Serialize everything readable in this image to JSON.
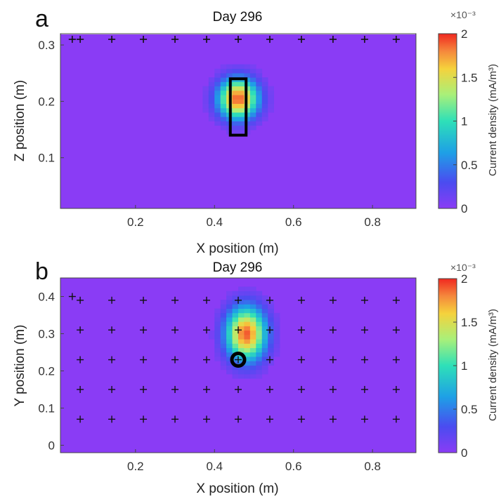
{
  "chart_data": [
    {
      "type": "heatmap",
      "panel_letter": "a",
      "title": "Day 296",
      "xlabel": "X position (m)",
      "ylabel": "Z position (m)",
      "xlim": [
        0.01,
        0.91
      ],
      "ylim": [
        0.01,
        0.32
      ],
      "xticks": [
        0.2,
        0.4,
        0.6,
        0.8
      ],
      "xtick_labels": [
        "0.2",
        "0.4",
        "0.6",
        "0.8"
      ],
      "yticks": [
        0.1,
        0.2,
        0.3
      ],
      "ytick_labels": [
        "0.1",
        "0.2",
        "0.3"
      ],
      "background_value": 0.0,
      "hotspot": {
        "x": 0.46,
        "y": 0.205,
        "peak": 1.9,
        "spread_x": 0.035,
        "spread_y": 0.025
      },
      "rectangle_marker": {
        "x": [
          0.44,
          0.48
        ],
        "y": [
          0.14,
          0.24
        ]
      },
      "electrodes": {
        "x": [
          0.04,
          0.06,
          0.14,
          0.22,
          0.3,
          0.38,
          0.46,
          0.54,
          0.62,
          0.7,
          0.78,
          0.86
        ],
        "y": [
          0.31
        ]
      },
      "colorbar": {
        "label": "Current density (mA/m³)",
        "exponent": "×10⁻³",
        "range": [
          0,
          2
        ],
        "ticks": [
          0,
          0.5,
          1,
          1.5,
          2
        ],
        "tick_labels": [
          "0",
          "0.5",
          "1",
          "1.5",
          "2"
        ]
      }
    },
    {
      "type": "heatmap",
      "panel_letter": "b",
      "title": "Day 296",
      "xlabel": "X position (m)",
      "ylabel": "Y position (m)",
      "xlim": [
        0.01,
        0.91
      ],
      "ylim": [
        -0.02,
        0.45
      ],
      "xticks": [
        0.2,
        0.4,
        0.6,
        0.8
      ],
      "xtick_labels": [
        "0.2",
        "0.4",
        "0.6",
        "0.8"
      ],
      "yticks": [
        0,
        0.1,
        0.2,
        0.3,
        0.4
      ],
      "ytick_labels": [
        "0",
        "0.1",
        "0.2",
        "0.3",
        "0.4"
      ],
      "background_value": 0.0,
      "hotspot": {
        "x": 0.48,
        "y": 0.3,
        "peak": 1.9,
        "spread_x": 0.035,
        "spread_y": 0.05
      },
      "circle_marker": {
        "x": 0.46,
        "y": 0.23
      },
      "electrodes": {
        "x": [
          0.06,
          0.14,
          0.22,
          0.3,
          0.38,
          0.46,
          0.54,
          0.62,
          0.7,
          0.78,
          0.86
        ],
        "y": [
          0.07,
          0.15,
          0.23,
          0.31,
          0.39
        ],
        "extra": [
          {
            "x": 0.04,
            "y": 0.4
          }
        ]
      },
      "colorbar": {
        "label": "Current density (mA/m³)",
        "exponent": "×10⁻³",
        "range": [
          0,
          2
        ],
        "ticks": [
          0,
          0.5,
          1,
          1.5,
          2
        ],
        "tick_labels": [
          "0",
          "0.5",
          "1",
          "1.5",
          "2"
        ]
      }
    }
  ]
}
